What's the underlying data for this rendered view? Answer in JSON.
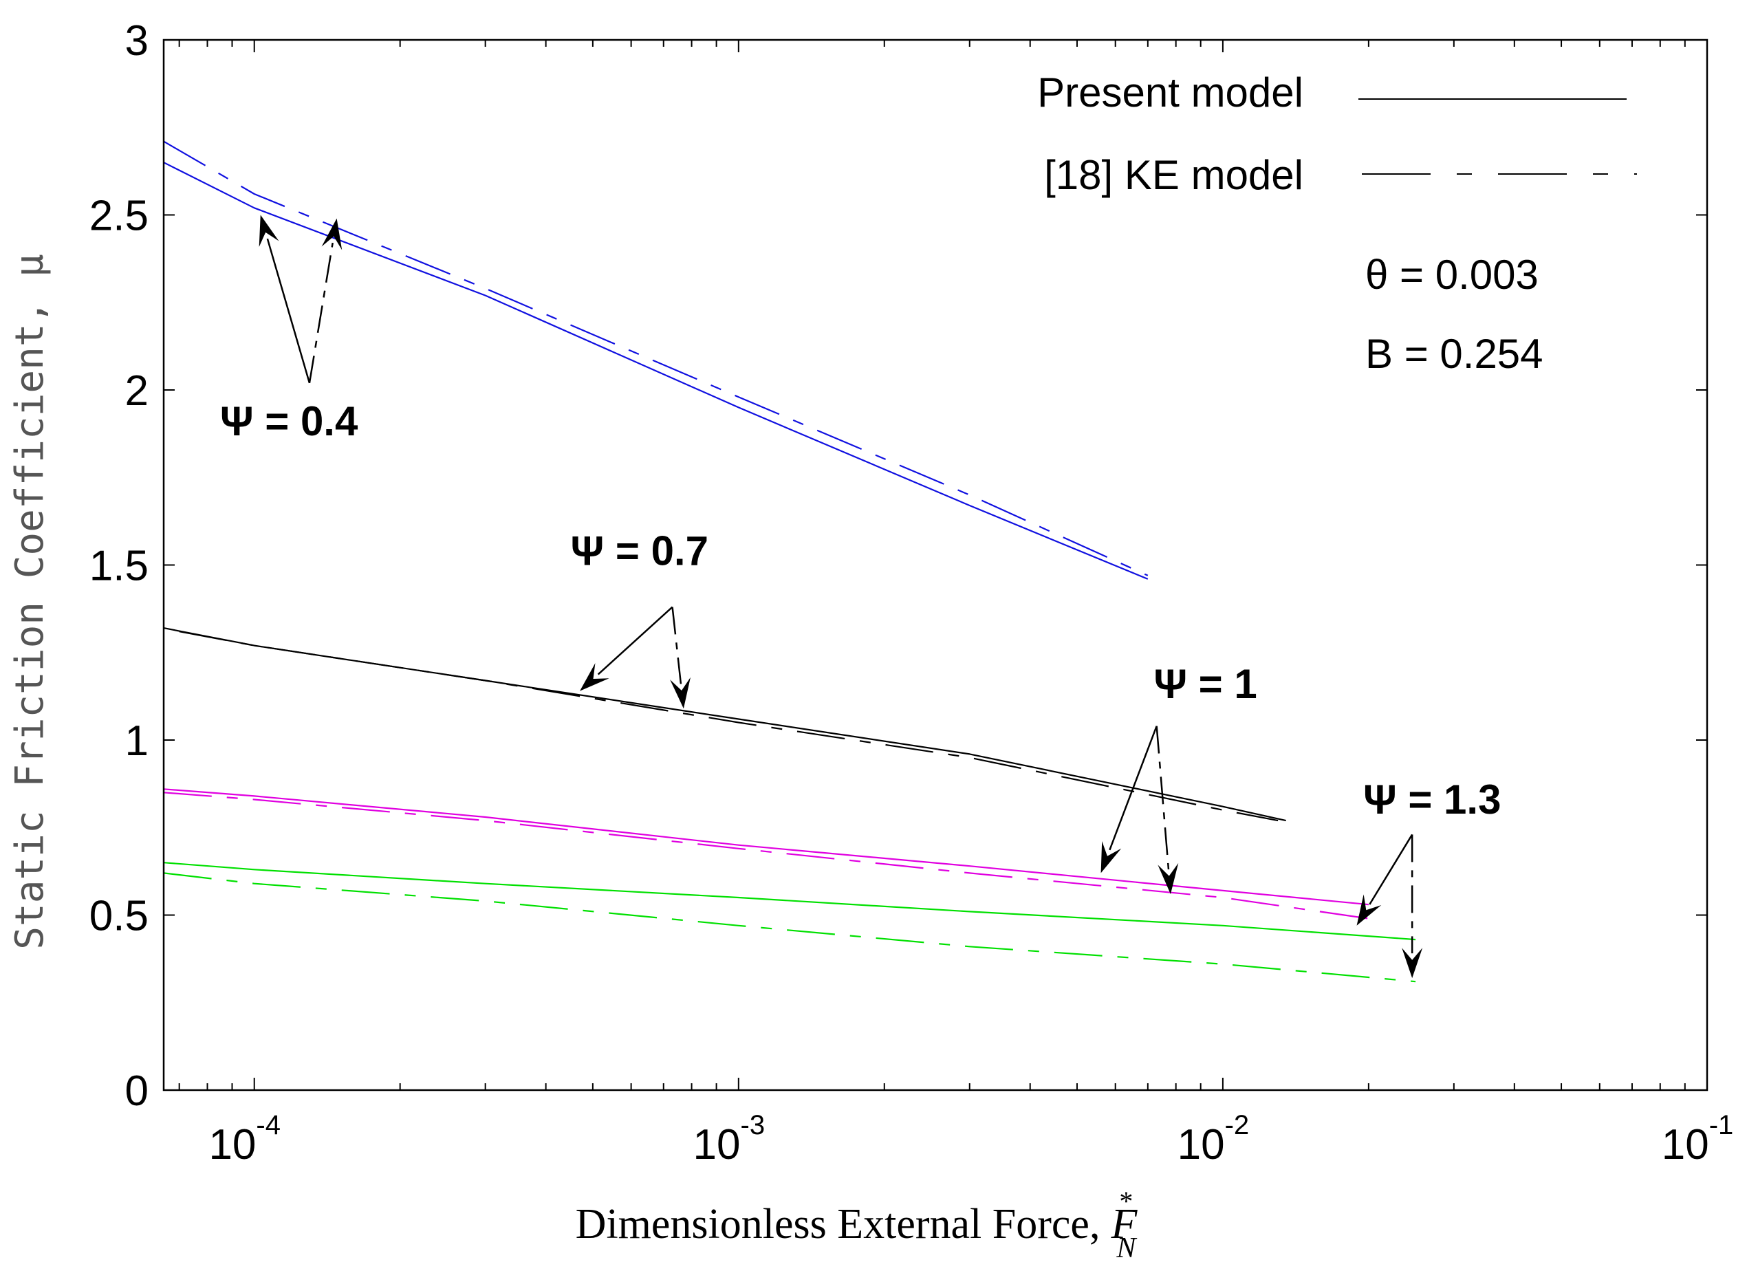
{
  "chart_data": {
    "type": "line",
    "xscale": "log",
    "xlim": [
      6.5e-05,
      0.1
    ],
    "ylim": [
      0,
      3
    ],
    "xlabel_text": "Dimensionless External Force,",
    "xlabel_symbol": "F",
    "xlabel_sub": "N",
    "xlabel_sup": "*",
    "ylabel": "Static Friction Coefficient, μ",
    "x_ticks": [
      {
        "base": "10",
        "exp": "-4",
        "value": 0.0001
      },
      {
        "base": "10",
        "exp": "-3",
        "value": 0.001
      },
      {
        "base": "10",
        "exp": "-2",
        "value": 0.01
      },
      {
        "base": "10",
        "exp": "-1",
        "value": 0.1
      }
    ],
    "y_ticks": [
      "0",
      "0.5",
      "1",
      "1.5",
      "2",
      "2.5",
      "3"
    ],
    "legend": {
      "placement": "top-right",
      "entries": [
        {
          "label": "Present model",
          "style": "solid"
        },
        {
          "label": "[18] KE model",
          "style": "dashed"
        }
      ]
    },
    "params": [
      "θ = 0.003",
      "B = 0.254"
    ],
    "colors": {
      "psi04": "#1010e0",
      "psi07": "#000000",
      "psi1": "#e000e0",
      "psi13": "#00e000",
      "arrow": "#000000"
    },
    "series": [
      {
        "name": "Ψ = 0.4 Present model",
        "color": "#1010e0",
        "style": "solid",
        "x": [
          6.5e-05,
          0.0001,
          0.0003,
          0.001,
          0.003,
          0.007
        ],
        "y": [
          2.65,
          2.52,
          2.27,
          1.95,
          1.67,
          1.46
        ]
      },
      {
        "name": "Ψ = 0.4 KE model",
        "color": "#1010e0",
        "style": "dashed",
        "x": [
          6.5e-05,
          0.0001,
          0.0003,
          0.001,
          0.003,
          0.007
        ],
        "y": [
          2.71,
          2.56,
          2.29,
          1.98,
          1.7,
          1.47
        ]
      },
      {
        "name": "Ψ = 0.7 Present model",
        "color": "#000000",
        "style": "solid",
        "x": [
          6.5e-05,
          0.0001,
          0.0003,
          0.001,
          0.003,
          0.01,
          0.0135
        ],
        "y": [
          1.32,
          1.27,
          1.17,
          1.06,
          0.96,
          0.81,
          0.77
        ]
      },
      {
        "name": "Ψ = 0.7 KE model",
        "color": "#000000",
        "style": "dashed",
        "x": [
          7e-05,
          0.0001,
          0.0003,
          0.001,
          0.003,
          0.01,
          0.013
        ],
        "y": [
          1.31,
          1.27,
          1.17,
          1.05,
          0.95,
          0.8,
          0.77
        ]
      },
      {
        "name": "Ψ = 1 Present model",
        "color": "#e000e0",
        "style": "solid",
        "x": [
          6.5e-05,
          0.0001,
          0.0003,
          0.001,
          0.003,
          0.01,
          0.02
        ],
        "y": [
          0.86,
          0.84,
          0.78,
          0.7,
          0.64,
          0.57,
          0.53
        ]
      },
      {
        "name": "Ψ = 1 KE model",
        "color": "#e000e0",
        "style": "dashed",
        "x": [
          6.5e-05,
          0.0001,
          0.0003,
          0.001,
          0.003,
          0.01,
          0.02
        ],
        "y": [
          0.85,
          0.83,
          0.77,
          0.69,
          0.62,
          0.55,
          0.49
        ]
      },
      {
        "name": "Ψ = 1.3 Present model",
        "color": "#00e000",
        "style": "solid",
        "x": [
          6.5e-05,
          0.0001,
          0.0003,
          0.001,
          0.003,
          0.01,
          0.025
        ],
        "y": [
          0.65,
          0.63,
          0.59,
          0.55,
          0.51,
          0.47,
          0.43
        ]
      },
      {
        "name": "Ψ = 1.3 KE model",
        "color": "#00e000",
        "style": "dashed",
        "x": [
          6.5e-05,
          0.0001,
          0.0003,
          0.001,
          0.003,
          0.01,
          0.025
        ],
        "y": [
          0.62,
          0.59,
          0.54,
          0.47,
          0.41,
          0.36,
          0.31
        ]
      }
    ],
    "annotations": [
      {
        "label": "Ψ = 0.4",
        "text_at": {
          "x": 8.5e-05,
          "y": 1.87
        },
        "origin": {
          "x": 0.00013,
          "y": 2.02
        },
        "arrows": [
          {
            "style": "solid",
            "to": {
              "x": 0.000103,
              "y": 2.5
            }
          },
          {
            "style": "dashed",
            "to": {
              "x": 0.000148,
              "y": 2.49
            }
          }
        ]
      },
      {
        "label": "Ψ = 0.7",
        "text_at": {
          "x": 0.00045,
          "y": 1.5
        },
        "origin": {
          "x": 0.00073,
          "y": 1.38
        },
        "arrows": [
          {
            "style": "solid",
            "to": {
              "x": 0.00047,
              "y": 1.14
            }
          },
          {
            "style": "dashed",
            "to": {
              "x": 0.00077,
              "y": 1.09
            }
          }
        ]
      },
      {
        "label": "Ψ = 1",
        "text_at": {
          "x": 0.0072,
          "y": 1.12
        },
        "origin": {
          "x": 0.0073,
          "y": 1.04
        },
        "arrows": [
          {
            "style": "solid",
            "to": {
              "x": 0.0056,
              "y": 0.62
            }
          },
          {
            "style": "dashed",
            "to": {
              "x": 0.0078,
              "y": 0.56
            }
          }
        ]
      },
      {
        "label": "Ψ = 1.3",
        "text_at": {
          "x": 0.0195,
          "y": 0.79
        },
        "origin": {
          "x": 0.0246,
          "y": 0.73
        },
        "arrows": [
          {
            "style": "solid",
            "to": {
              "x": 0.0189,
              "y": 0.47
            }
          },
          {
            "style": "dashed",
            "to": {
              "x": 0.0246,
              "y": 0.32
            }
          }
        ]
      }
    ]
  }
}
